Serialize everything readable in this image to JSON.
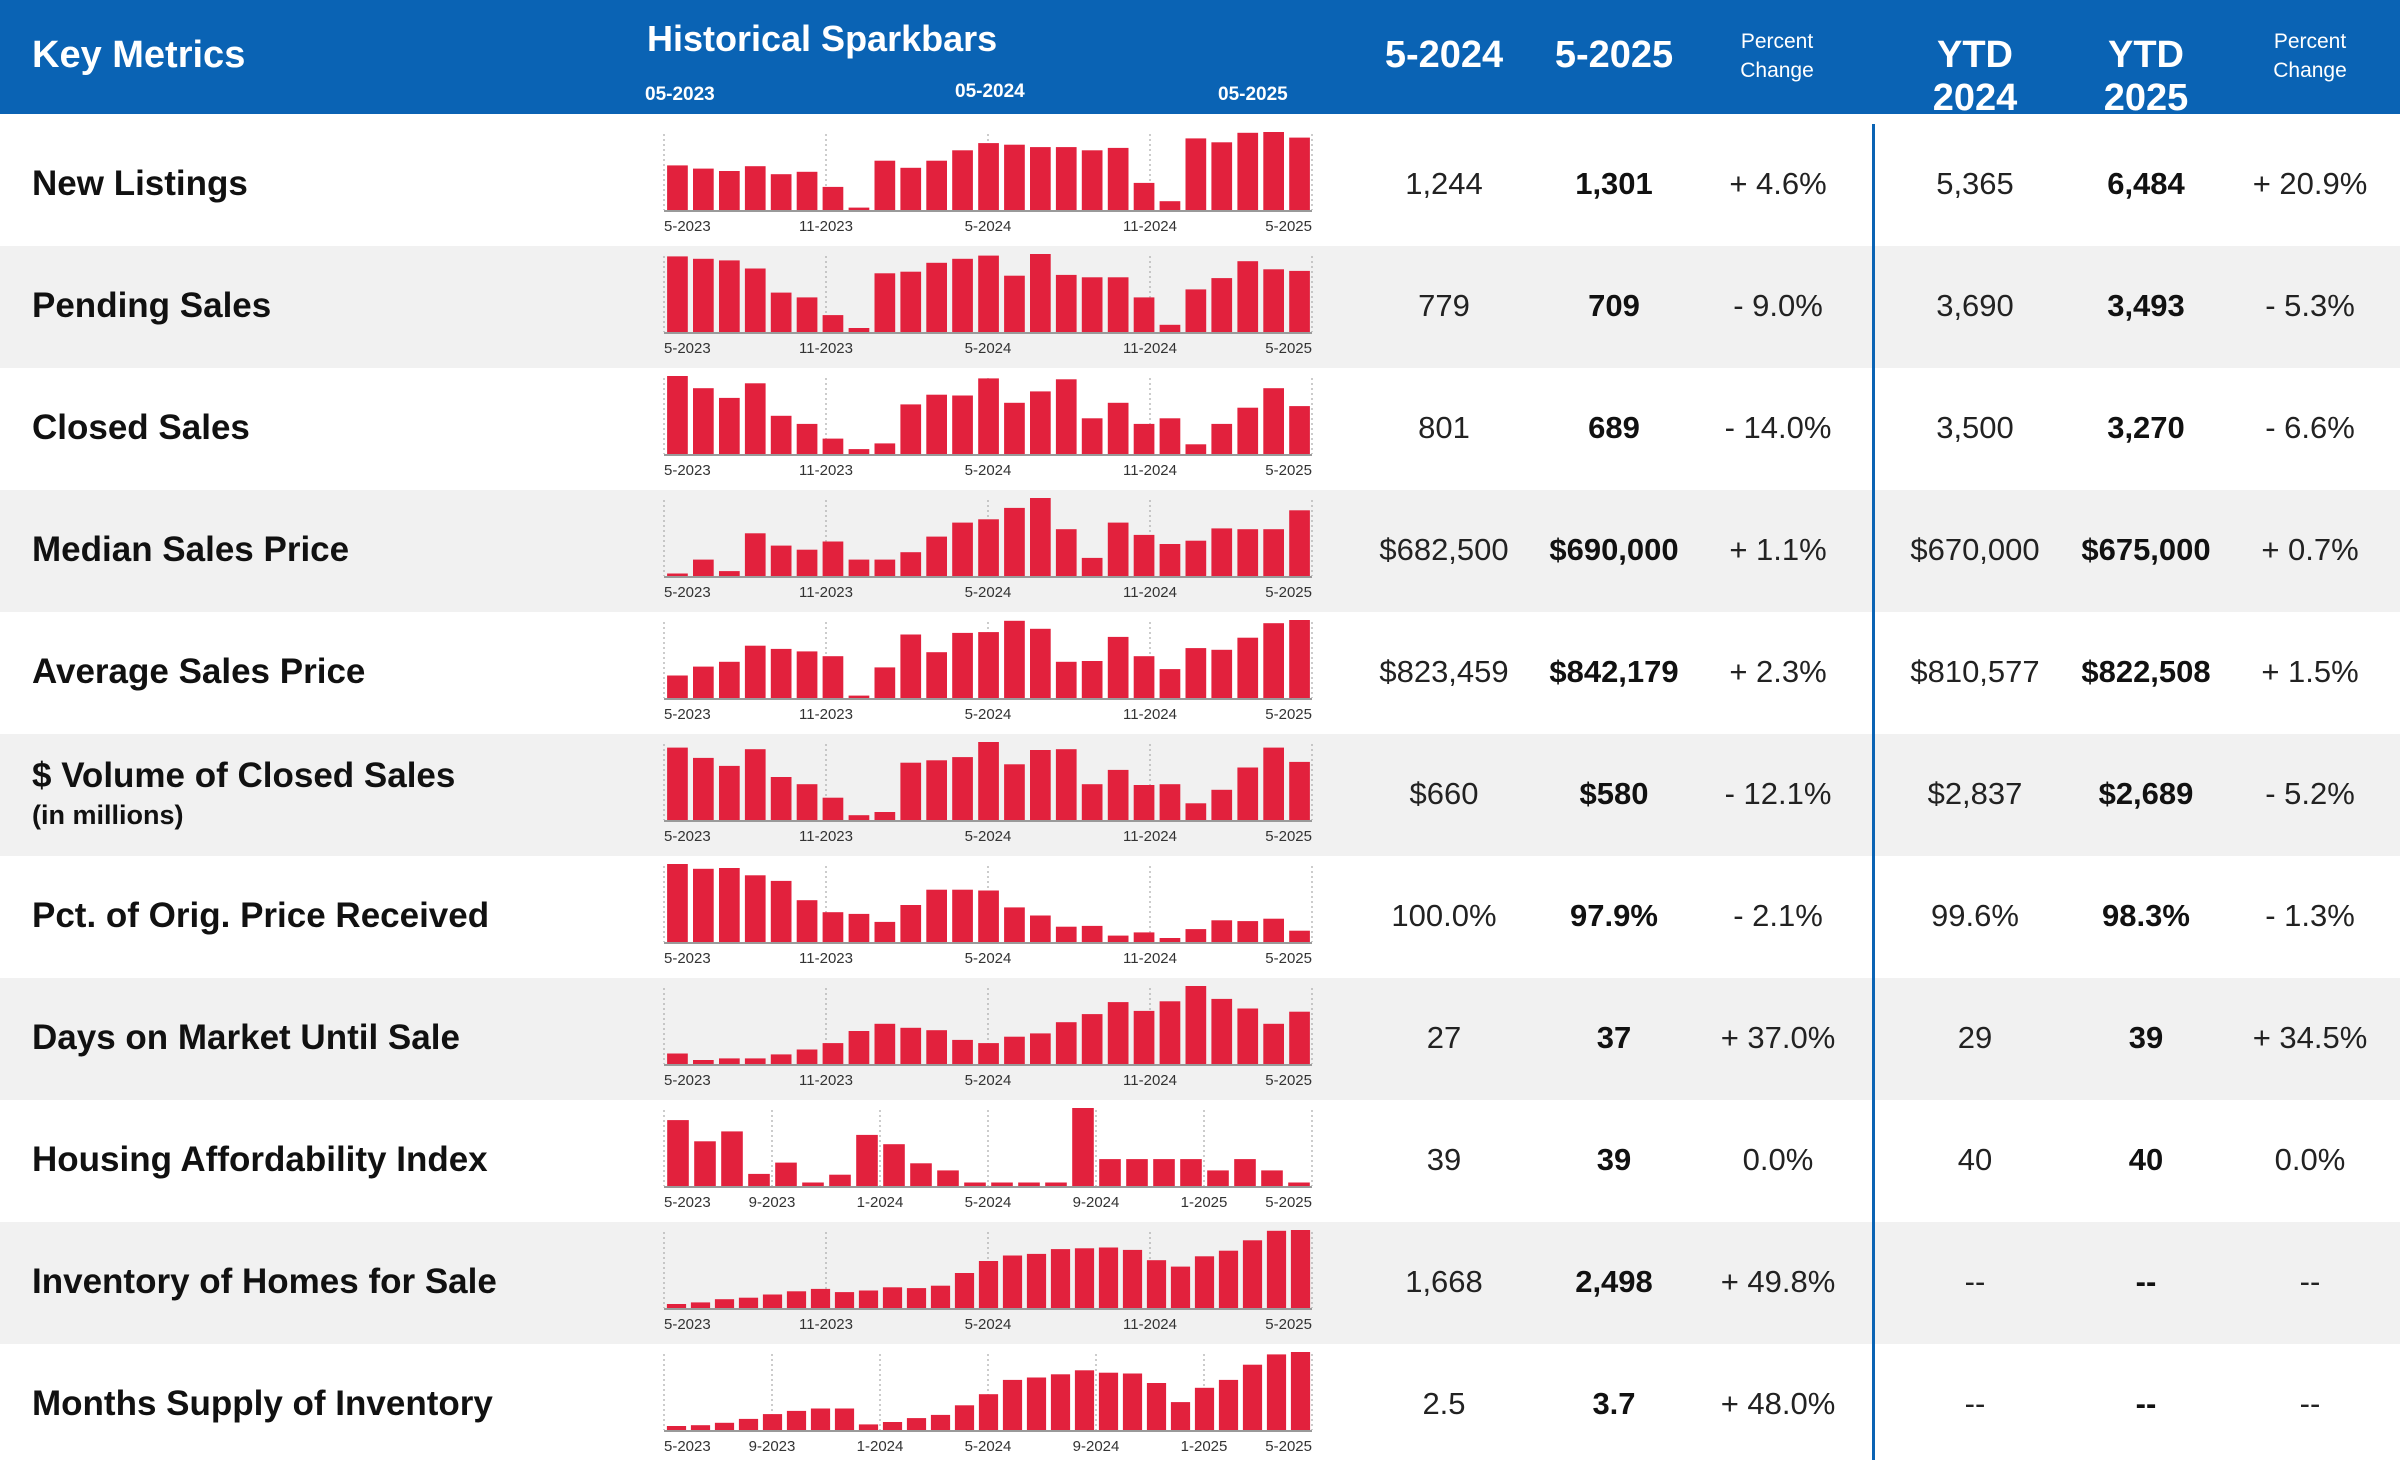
{
  "header": {
    "key_metrics": "Key Metrics",
    "sparkbars": "Historical Sparkbars",
    "spark_labels": [
      "05-2023",
      "05-2024",
      "05-2025"
    ],
    "col_5_2024": "5-2024",
    "col_5_2025": "5-2025",
    "pct_change_1": "Percent",
    "pct_change_2": "Change",
    "col_ytd_2024": "YTD 2024",
    "col_ytd_2025": "YTD 2025"
  },
  "colors": {
    "header_bg": "#0a63b4",
    "bar": "#e2213d",
    "shade": "#f1f1f1"
  },
  "rows": [
    {
      "label": "New Listings",
      "sub": "",
      "v2024": "1,244",
      "v2025": "1,301",
      "pct": "+ 4.6%",
      "ytd2024": "5,365",
      "ytd2025": "6,484",
      "ytdpct": "+ 20.9%"
    },
    {
      "label": "Pending Sales",
      "sub": "",
      "v2024": "779",
      "v2025": "709",
      "pct": "- 9.0%",
      "ytd2024": "3,690",
      "ytd2025": "3,493",
      "ytdpct": "- 5.3%"
    },
    {
      "label": "Closed Sales",
      "sub": "",
      "v2024": "801",
      "v2025": "689",
      "pct": "- 14.0%",
      "ytd2024": "3,500",
      "ytd2025": "3,270",
      "ytdpct": "- 6.6%"
    },
    {
      "label": "Median Sales Price",
      "sub": "",
      "v2024": "$682,500",
      "v2025": "$690,000",
      "pct": "+ 1.1%",
      "ytd2024": "$670,000",
      "ytd2025": "$675,000",
      "ytdpct": "+ 0.7%"
    },
    {
      "label": "Average Sales Price",
      "sub": "",
      "v2024": "$823,459",
      "v2025": "$842,179",
      "pct": "+ 2.3%",
      "ytd2024": "$810,577",
      "ytd2025": "$822,508",
      "ytdpct": "+ 1.5%"
    },
    {
      "label": "$ Volume of Closed Sales",
      "sub": "(in millions)",
      "v2024": "$660",
      "v2025": "$580",
      "pct": "- 12.1%",
      "ytd2024": "$2,837",
      "ytd2025": "$2,689",
      "ytdpct": "- 5.2%"
    },
    {
      "label": "Pct. of Orig. Price Received",
      "sub": "",
      "v2024": "100.0%",
      "v2025": "97.9%",
      "pct": "- 2.1%",
      "ytd2024": "99.6%",
      "ytd2025": "98.3%",
      "ytdpct": "- 1.3%"
    },
    {
      "label": "Days on Market Until Sale",
      "sub": "",
      "v2024": "27",
      "v2025": "37",
      "pct": "+ 37.0%",
      "ytd2024": "29",
      "ytd2025": "39",
      "ytdpct": "+ 34.5%"
    },
    {
      "label": "Housing Affordability Index",
      "sub": "",
      "v2024": "39",
      "v2025": "39",
      "pct": "0.0%",
      "ytd2024": "40",
      "ytd2025": "40",
      "ytdpct": "0.0%"
    },
    {
      "label": "Inventory of Homes for Sale",
      "sub": "",
      "v2024": "1,668",
      "v2025": "2,498",
      "pct": "+ 49.8%",
      "ytd2024": "--",
      "ytd2025": "--",
      "ytdpct": "--"
    },
    {
      "label": "Months Supply of Inventory",
      "sub": "",
      "v2024": "2.5",
      "v2025": "3.7",
      "pct": "+ 48.0%",
      "ytd2024": "--",
      "ytd2025": "--",
      "ytdpct": "--"
    }
  ],
  "chart_data": [
    {
      "type": "bar",
      "metric": "New Listings",
      "ticks": [
        "5-2023",
        "11-2023",
        "5-2024",
        "11-2024",
        "5-2025"
      ],
      "values": [
        56,
        52,
        49,
        55,
        45,
        48,
        29,
        3,
        62,
        53,
        62,
        75,
        84,
        82,
        79,
        79,
        75,
        78,
        34,
        11,
        90,
        85,
        97,
        98,
        91
      ]
    },
    {
      "type": "bar",
      "metric": "Pending Sales",
      "ticks": [
        "5-2023",
        "11-2023",
        "5-2024",
        "11-2024",
        "5-2025"
      ],
      "values": [
        94,
        91,
        89,
        79,
        49,
        43,
        21,
        5,
        73,
        75,
        86,
        91,
        95,
        70,
        97,
        71,
        68,
        68,
        43,
        9,
        53,
        67,
        88,
        78,
        76
      ]
    },
    {
      "type": "bar",
      "metric": "Closed Sales",
      "ticks": [
        "5-2023",
        "11-2023",
        "5-2024",
        "11-2024",
        "5-2025"
      ],
      "values": [
        96,
        81,
        69,
        87,
        47,
        37,
        19,
        6,
        13,
        61,
        73,
        72,
        93,
        63,
        77,
        92,
        44,
        63,
        37,
        44,
        12,
        37,
        57,
        81,
        59
      ]
    },
    {
      "type": "bar",
      "metric": "Median Sales Price",
      "ticks": [
        "5-2023",
        "11-2023",
        "5-2024",
        "11-2024",
        "5-2025"
      ],
      "values": [
        3,
        20,
        6,
        52,
        37,
        32,
        42,
        20,
        20,
        29,
        48,
        65,
        69,
        83,
        95,
        57,
        22,
        65,
        50,
        39,
        43,
        58,
        57,
        57,
        80
      ]
    },
    {
      "type": "bar",
      "metric": "Average Sales Price",
      "ticks": [
        "5-2023",
        "11-2023",
        "5-2024",
        "11-2024",
        "5-2025"
      ],
      "values": [
        28,
        39,
        45,
        65,
        61,
        58,
        52,
        3,
        38,
        79,
        57,
        81,
        82,
        96,
        86,
        45,
        46,
        76,
        52,
        36,
        62,
        60,
        75,
        93,
        97
      ]
    },
    {
      "type": "bar",
      "metric": "$ Volume of Closed Sales",
      "ticks": [
        "5-2023",
        "11-2023",
        "5-2024",
        "11-2024",
        "5-2025"
      ],
      "values": [
        91,
        78,
        68,
        89,
        54,
        45,
        28,
        6,
        10,
        72,
        75,
        79,
        98,
        70,
        88,
        89,
        45,
        63,
        44,
        45,
        21,
        38,
        66,
        91,
        73
      ]
    },
    {
      "type": "bar",
      "metric": "Pct. of Orig. Price Received",
      "ticks": [
        "5-2023",
        "11-2023",
        "5-2024",
        "11-2024",
        "5-2025"
      ],
      "values": [
        97,
        91,
        92,
        83,
        76,
        52,
        37,
        35,
        25,
        46,
        65,
        65,
        64,
        43,
        33,
        19,
        20,
        8,
        12,
        5,
        16,
        27,
        26,
        29,
        14
      ]
    },
    {
      "type": "bar",
      "metric": "Days on Market Until Sale",
      "ticks": [
        "5-2023",
        "11-2023",
        "5-2024",
        "11-2024",
        "5-2025"
      ],
      "values": [
        13,
        5,
        7,
        7,
        12,
        18,
        26,
        41,
        50,
        45,
        42,
        30,
        26,
        34,
        38,
        52,
        62,
        77,
        66,
        78,
        97,
        81,
        69,
        50,
        65
      ]
    },
    {
      "type": "bar",
      "metric": "Housing Affordability Index",
      "ticks": [
        "5-2023",
        "9-2023",
        "1-2024",
        "5-2024",
        "9-2024",
        "1-2025",
        "5-2025"
      ],
      "values": [
        93,
        63,
        77,
        17,
        33,
        5,
        16,
        72,
        59,
        32,
        22,
        5,
        5,
        5,
        5,
        110,
        38,
        38,
        38,
        38,
        22,
        38,
        22,
        5
      ]
    },
    {
      "type": "bar",
      "metric": "Inventory of Homes for Sale",
      "ticks": [
        "5-2023",
        "11-2023",
        "5-2024",
        "11-2024",
        "5-2025"
      ],
      "values": [
        5,
        7,
        11,
        13,
        17,
        21,
        24,
        20,
        22,
        26,
        25,
        28,
        44,
        59,
        66,
        68,
        74,
        75,
        76,
        73,
        60,
        52,
        65,
        72,
        85,
        97,
        98
      ]
    },
    {
      "type": "bar",
      "metric": "Months Supply of Inventory",
      "ticks": [
        "5-2023",
        "9-2023",
        "1-2024",
        "5-2024",
        "9-2024",
        "1-2025",
        "5-2025"
      ],
      "values": [
        5,
        6,
        9,
        14,
        20,
        24,
        27,
        27,
        7,
        10,
        15,
        19,
        31,
        45,
        63,
        66,
        70,
        75,
        72,
        71,
        59,
        35,
        53,
        63,
        82,
        95,
        98
      ]
    }
  ]
}
